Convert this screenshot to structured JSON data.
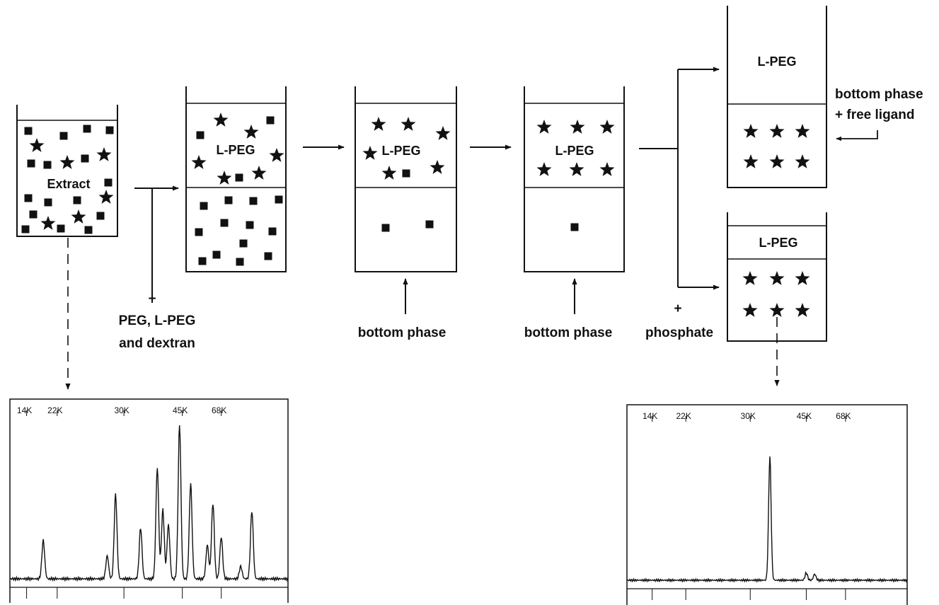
{
  "vessels": {
    "extract": "Extract",
    "v1_top": "L-PEG",
    "v2_top": "L-PEG",
    "v3_top": "L-PEG",
    "v4_top": "L-PEG",
    "v5_top": "L-PEG"
  },
  "labels": {
    "plus_1": "+",
    "reagents_line1": "PEG, L-PEG",
    "reagents_line2": "and dextran",
    "bottom_phase_1": "bottom phase",
    "bottom_phase_2": "bottom phase",
    "plus_2": "+",
    "phosphate": "phosphate",
    "bottom_phase_free_line1": "bottom phase",
    "bottom_phase_free_line2": "+ free ligand"
  },
  "particle_legend": {
    "square": "square-particle-icon",
    "star": "star-particle-icon"
  },
  "colors": {
    "ink": "#111111",
    "background": "#ffffff"
  },
  "chart_data": [
    {
      "type": "line",
      "title": "",
      "xlabel": "",
      "ylabel": "",
      "ticks": [
        "14K",
        "22K",
        "30K",
        "45K",
        "68K"
      ],
      "tick_positions": [
        0.06,
        0.17,
        0.41,
        0.62,
        0.76
      ],
      "peaks": [
        {
          "x": 0.12,
          "h": 0.25
        },
        {
          "x": 0.35,
          "h": 0.15
        },
        {
          "x": 0.38,
          "h": 0.55
        },
        {
          "x": 0.47,
          "h": 0.33
        },
        {
          "x": 0.53,
          "h": 0.72
        },
        {
          "x": 0.55,
          "h": 0.45
        },
        {
          "x": 0.57,
          "h": 0.35
        },
        {
          "x": 0.61,
          "h": 1.0
        },
        {
          "x": 0.65,
          "h": 0.62
        },
        {
          "x": 0.71,
          "h": 0.22
        },
        {
          "x": 0.73,
          "h": 0.49
        },
        {
          "x": 0.76,
          "h": 0.27
        },
        {
          "x": 0.83,
          "h": 0.08
        },
        {
          "x": 0.87,
          "h": 0.44
        }
      ]
    },
    {
      "type": "line",
      "title": "",
      "xlabel": "",
      "ylabel": "",
      "ticks": [
        "14K",
        "22K",
        "30K",
        "45K",
        "68K"
      ],
      "tick_positions": [
        0.09,
        0.21,
        0.44,
        0.64,
        0.78
      ],
      "peaks": [
        {
          "x": 0.51,
          "h": 1.0
        },
        {
          "x": 0.64,
          "h": 0.06
        },
        {
          "x": 0.67,
          "h": 0.05
        }
      ]
    }
  ]
}
